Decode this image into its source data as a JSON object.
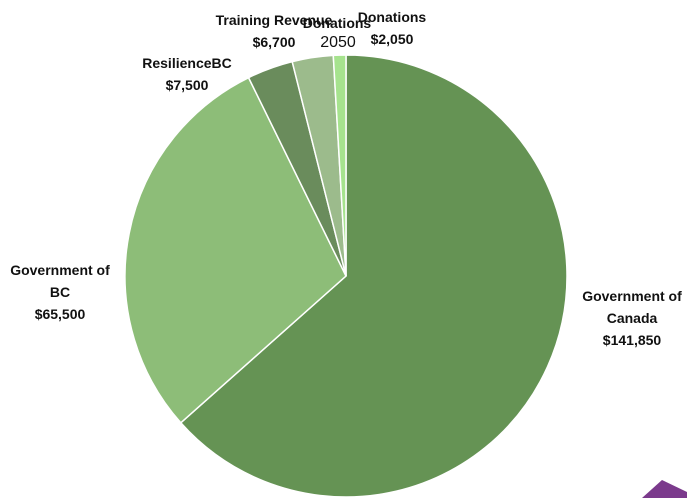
{
  "chart_data": {
    "type": "pie",
    "categories": [
      "Government of Canada",
      "Government of BC",
      "ResilienceBC",
      "Training Revenue",
      "Donations"
    ],
    "values": [
      141850,
      65500,
      7500,
      6700,
      2050
    ],
    "value_labels": [
      "$141,850",
      "$65,500",
      "$7,500",
      "$6,700",
      "$2,050"
    ],
    "colors": [
      "#659354",
      "#8dbd78",
      "#6a8c5c",
      "#9cbb8c",
      "#a6e38e"
    ],
    "annotations": [
      "Donations",
      "2050"
    ]
  }
}
